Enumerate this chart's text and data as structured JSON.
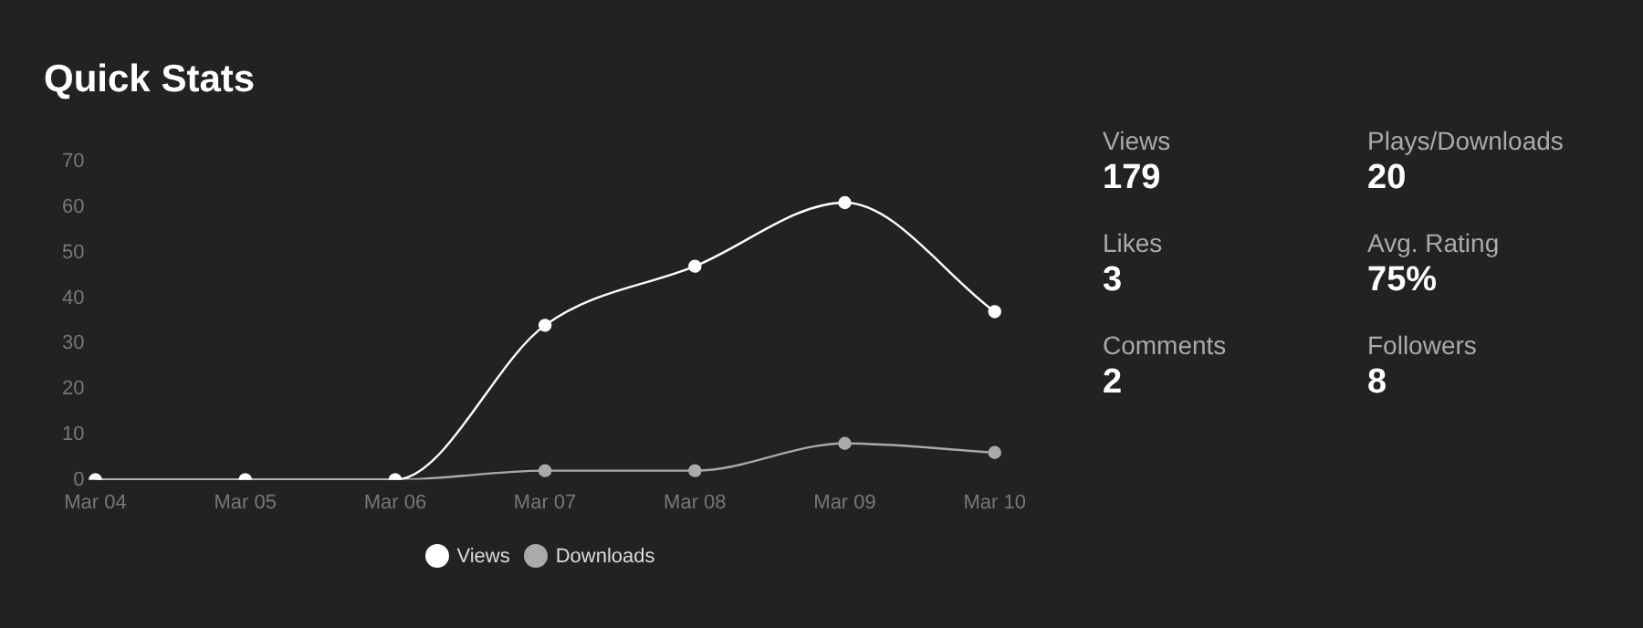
{
  "chart_data": [
    {
      "type": "line",
      "title": "Quick Stats",
      "categories": [
        "Mar 04",
        "Mar 05",
        "Mar 06",
        "Mar 07",
        "Mar 08",
        "Mar 09",
        "Mar 10"
      ],
      "series": [
        {
          "name": "Views",
          "color": "#ffffff",
          "values": [
            0,
            0,
            0,
            34,
            47,
            61,
            37
          ]
        },
        {
          "name": "Downloads",
          "color": "#aaaaaa",
          "values": [
            0,
            0,
            0,
            2,
            2,
            8,
            6
          ]
        }
      ],
      "ylim": [
        0,
        70
      ],
      "yticks": [
        0,
        10,
        20,
        30,
        40,
        50,
        60,
        70
      ],
      "grid": false,
      "legend": "bottom",
      "marker": "circle",
      "line_style": "solid"
    },
    {
      "type": "other",
      "categories": [
        "Views",
        "Plays/Downloads",
        "Likes",
        "Avg. Rating",
        "Comments",
        "Followers"
      ],
      "value_labels": [
        "179",
        "20",
        "3",
        "75%",
        "2",
        "8"
      ]
    }
  ]
}
